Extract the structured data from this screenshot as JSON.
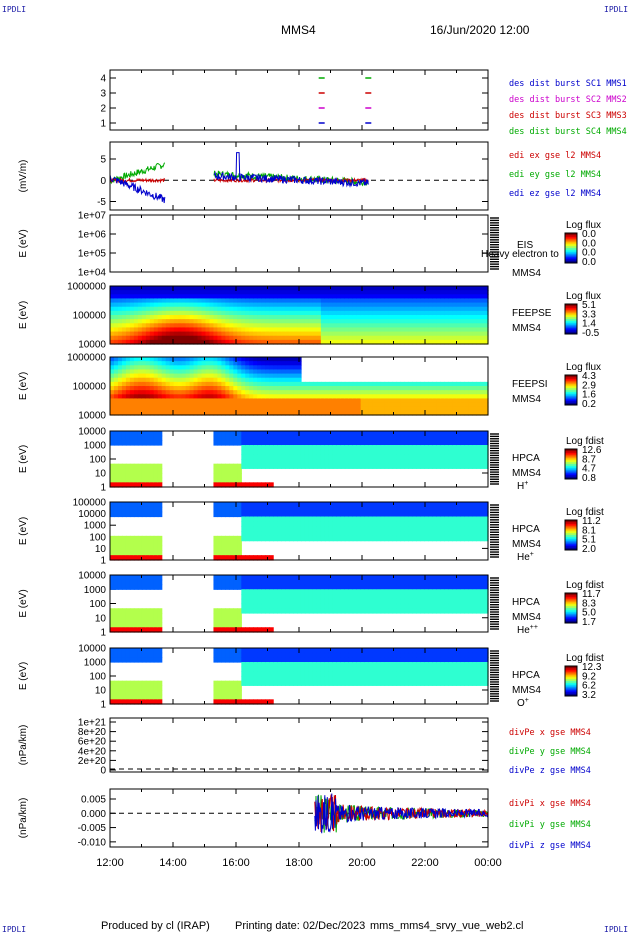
{
  "header": {
    "corner_label": "IPDLI",
    "title": "MMS4",
    "datetime": "16/Jun/2020 12:00"
  },
  "footer": {
    "produced_by": "Produced by cl (IRAP)",
    "printing_date": "Printing date: 02/Dec/2023",
    "script_name": "mms_mms4_srvy_vue_web2.cl"
  },
  "time_axis": {
    "ticks": [
      "12:00",
      "14:00",
      "16:00",
      "18:00",
      "20:00",
      "22:00",
      "00:00"
    ],
    "start_hour": 12,
    "end_hour": 24
  },
  "chart_data": [
    {
      "id": "burst",
      "type": "scatter",
      "ylabel": "",
      "yticks": [
        "1",
        "2",
        "3",
        "4"
      ],
      "legend": [
        {
          "text": "des dist burst SC1 MMS1",
          "color": "#0000cc"
        },
        {
          "text": "des dist burst SC2 MMS2",
          "color": "#cc00cc"
        },
        {
          "text": "des dist burst SC3 MMS3",
          "color": "#cc0000"
        },
        {
          "text": "des dist burst SC4 MMS4",
          "color": "#00aa00"
        }
      ],
      "segments": [
        {
          "sc": 4,
          "t": 18.72,
          "color": "#00aa00"
        },
        {
          "sc": 4,
          "t": 20.2,
          "color": "#00aa00"
        },
        {
          "sc": 3,
          "t": 18.72,
          "color": "#cc0000"
        },
        {
          "sc": 3,
          "t": 20.2,
          "color": "#cc0000"
        },
        {
          "sc": 2,
          "t": 18.72,
          "color": "#cc00cc"
        },
        {
          "sc": 2,
          "t": 20.2,
          "color": "#cc00cc"
        },
        {
          "sc": 1,
          "t": 18.72,
          "color": "#0000cc"
        },
        {
          "sc": 1,
          "t": 20.2,
          "color": "#0000cc"
        }
      ]
    },
    {
      "id": "edi",
      "type": "line",
      "ylabel": "(mV/m)",
      "yticks": [
        "-5",
        "0",
        "5"
      ],
      "ylim": [
        -7,
        9
      ],
      "legend": [
        {
          "text": "edi ex gse l2 MMS4",
          "color": "#cc0000"
        },
        {
          "text": "edi ey gse l2 MMS4",
          "color": "#00aa00"
        },
        {
          "text": "edi ez gse l2 MMS4",
          "color": "#0000cc"
        }
      ]
    },
    {
      "id": "eis",
      "type": "heatmap",
      "ylabel": "E (eV)",
      "yticks": [
        "1e+04",
        "1e+05",
        "1e+06",
        "1e+07"
      ],
      "instrument": "EIS",
      "spacecraft": "MMS4",
      "overlay_text": "Heavy electron to",
      "colorbar_title": "Log flux",
      "colorbar_ticks": [
        "0.0",
        "0.0",
        "0.0",
        "0.0"
      ]
    },
    {
      "id": "feepse",
      "type": "heatmap",
      "ylabel": "E (eV)",
      "yticks": [
        "10000",
        "100000",
        "1000000"
      ],
      "instrument": "FEEPSE",
      "spacecraft": "MMS4",
      "colorbar_title": "Log flux",
      "colorbar_ticks": [
        "5.1",
        "3.3",
        "1.4",
        "-0.5"
      ]
    },
    {
      "id": "feepsi",
      "type": "heatmap",
      "ylabel": "E (eV)",
      "yticks": [
        "10000",
        "100000",
        "1000000"
      ],
      "instrument": "FEEPSI",
      "spacecraft": "MMS4",
      "colorbar_title": "Log flux",
      "colorbar_ticks": [
        "4.3",
        "2.9",
        "1.6",
        "0.2"
      ]
    },
    {
      "id": "hpca-h",
      "type": "heatmap",
      "ylabel": "E (eV)",
      "yticks": [
        "1",
        "10",
        "100",
        "1000",
        "10000"
      ],
      "instrument": "HPCA",
      "spacecraft": "MMS4",
      "species": "H",
      "species_charge": "+",
      "colorbar_title": "Log fdist",
      "colorbar_ticks": [
        "12.6",
        "8.7",
        "4.7",
        "0.8"
      ]
    },
    {
      "id": "hpca-he",
      "type": "heatmap",
      "ylabel": "E (eV)",
      "yticks": [
        "1",
        "10",
        "100",
        "1000",
        "10000",
        "100000"
      ],
      "instrument": "HPCA",
      "spacecraft": "MMS4",
      "species": "He",
      "species_charge": "+",
      "colorbar_title": "Log fdist",
      "colorbar_ticks": [
        "11.2",
        "8.1",
        "5.1",
        "2.0"
      ]
    },
    {
      "id": "hpca-he2",
      "type": "heatmap",
      "ylabel": "E (eV)",
      "yticks": [
        "1",
        "10",
        "100",
        "1000",
        "10000"
      ],
      "instrument": "HPCA",
      "spacecraft": "MMS4",
      "species": "He",
      "species_charge": "++",
      "colorbar_title": "Log fdist",
      "colorbar_ticks": [
        "11.7",
        "8.3",
        "5.0",
        "1.7"
      ]
    },
    {
      "id": "hpca-o",
      "type": "heatmap",
      "ylabel": "E (eV)",
      "yticks": [
        "1",
        "10",
        "100",
        "1000",
        "10000"
      ],
      "instrument": "HPCA",
      "spacecraft": "MMS4",
      "species": "O",
      "species_charge": "+",
      "colorbar_title": "Log fdist",
      "colorbar_ticks": [
        "12.3",
        "9.2",
        "6.2",
        "3.2"
      ]
    },
    {
      "id": "divpe",
      "type": "line",
      "ylabel": "(nPa/km)",
      "yticks": [
        "0",
        "2e+20",
        "4e+20",
        "6e+20",
        "8e+20",
        "1e+21"
      ],
      "legend": [
        {
          "text": "divPe x gse MMS4",
          "color": "#cc0000"
        },
        {
          "text": "divPe y gse MMS4",
          "color": "#00aa00"
        },
        {
          "text": "divPe z gse MMS4",
          "color": "#0000cc"
        }
      ]
    },
    {
      "id": "divpi",
      "type": "line",
      "ylabel": "(nPa/km)",
      "yticks": [
        "-0.010",
        "-0.005",
        "0.000",
        "0.005"
      ],
      "ylim": [
        -0.0118,
        0.0085
      ],
      "legend": [
        {
          "text": "divPi x gse MMS4",
          "color": "#cc0000"
        },
        {
          "text": "divPi y gse MMS4",
          "color": "#00aa00"
        },
        {
          "text": "divPi z gse MMS4",
          "color": "#0000cc"
        }
      ]
    }
  ]
}
